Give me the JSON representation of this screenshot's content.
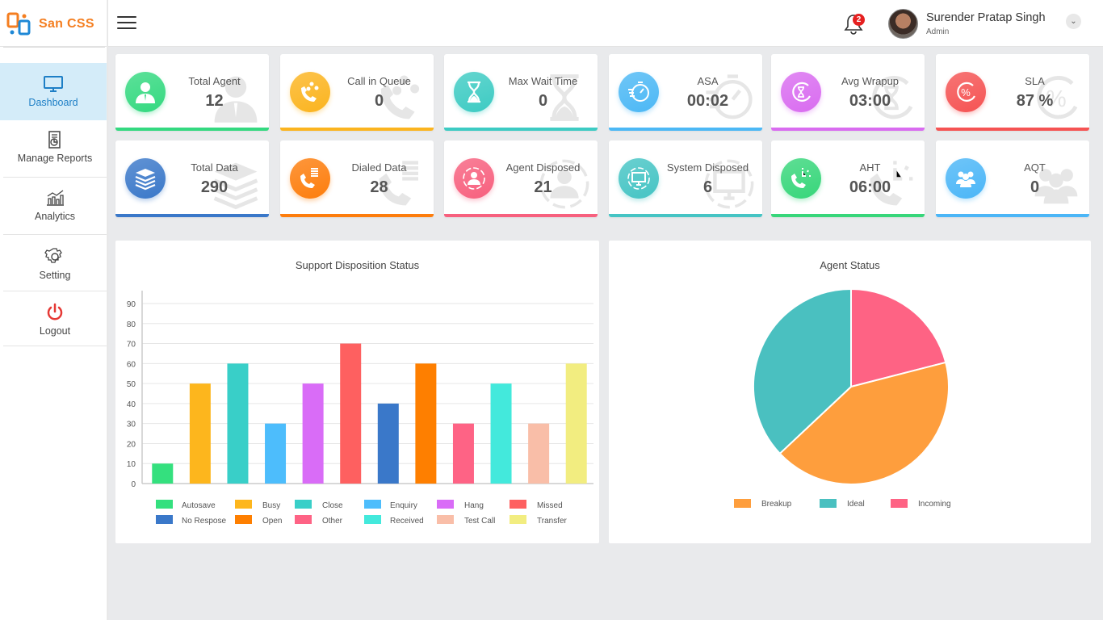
{
  "brand": {
    "name": "San CSS",
    "primary_color": "#f47e20"
  },
  "header": {
    "menu_icon": "hamburger-menu-icon",
    "notifications": {
      "icon": "bell-icon",
      "count": "2"
    },
    "user": {
      "name": "Surender Pratap Singh",
      "role": "Admin",
      "menu_icon": "chevron-down-icon"
    }
  },
  "sidebar": {
    "items": [
      {
        "label": "Dashboard",
        "icon": "monitor-icon",
        "active": true
      },
      {
        "label": "Manage Reports",
        "icon": "report-icon",
        "active": false
      },
      {
        "label": "Analytics",
        "icon": "analytics-icon",
        "active": false
      },
      {
        "label": "Setting",
        "icon": "gear-icon",
        "active": false
      },
      {
        "label": "Logout",
        "icon": "power-icon",
        "active": false
      }
    ]
  },
  "cards": [
    {
      "title": "Total Agent",
      "value": "12",
      "icon": "agent-icon",
      "color": "#34d980"
    },
    {
      "title": "Call in Queue",
      "value": "0",
      "icon": "call-queue-icon",
      "color": "#fbb41f"
    },
    {
      "title": "Max Wait Time",
      "value": "0",
      "icon": "hourglass-icon",
      "color": "#3dcbc3"
    },
    {
      "title": "ASA",
      "value": "00:02",
      "icon": "stopwatch-icon",
      "color": "#4cb8f5"
    },
    {
      "title": "Avg Wrapup",
      "value": "03:00",
      "icon": "wrapup-timer-icon",
      "color": "#d96cf0"
    },
    {
      "title": "SLA",
      "value": "87 %",
      "icon": "percent-icon",
      "color": "#f55353"
    },
    {
      "title": "Total Data",
      "value": "290",
      "icon": "layers-icon",
      "color": "#3a78c9"
    },
    {
      "title": "Dialed Data",
      "value": "28",
      "icon": "dialed-data-icon",
      "color": "#fd7d0c"
    },
    {
      "title": "Agent Disposed",
      "value": "21",
      "icon": "agent-disposed-icon",
      "color": "#f7607e"
    },
    {
      "title": "System Disposed",
      "value": "6",
      "icon": "system-monitor-icon",
      "color": "#45c4c4"
    },
    {
      "title": "AHT",
      "value": "06:00",
      "icon": "phone-clock-icon",
      "color": "#37d67a"
    },
    {
      "title": "AQT",
      "value": "0",
      "icon": "group-icon",
      "color": "#4bb6f7"
    }
  ],
  "chart_data": [
    {
      "type": "bar",
      "title": "Support Disposition Status",
      "xlabel": "",
      "ylabel": "",
      "ylim": [
        0,
        90
      ],
      "yticks": [
        0,
        10,
        20,
        30,
        40,
        50,
        60,
        70,
        80,
        90
      ],
      "grid": true,
      "legend_position": "bottom",
      "categories": [
        "Autosave",
        "Busy",
        "Close",
        "Enquiry",
        "Hang",
        "Missed",
        "No Respose",
        "Open",
        "Other",
        "Received",
        "Test Call",
        "Transfer"
      ],
      "values": [
        10,
        50,
        60,
        30,
        50,
        70,
        40,
        60,
        30,
        50,
        30,
        60
      ],
      "colors": [
        "#34e07e",
        "#fdb61d",
        "#39cfc8",
        "#4dbdfc",
        "#d96cf7",
        "#fe6060",
        "#3a78c9",
        "#fe7f00",
        "#fe6385",
        "#43e9dc",
        "#f9bea8",
        "#f2ed80"
      ]
    },
    {
      "type": "pie",
      "title": "Agent Status",
      "legend_position": "bottom",
      "categories": [
        "Breakup",
        "Ideal",
        "Incoming"
      ],
      "values": [
        42,
        37,
        21
      ],
      "colors": [
        "#fe9e3d",
        "#4ac0c0",
        "#fe6384"
      ]
    }
  ]
}
